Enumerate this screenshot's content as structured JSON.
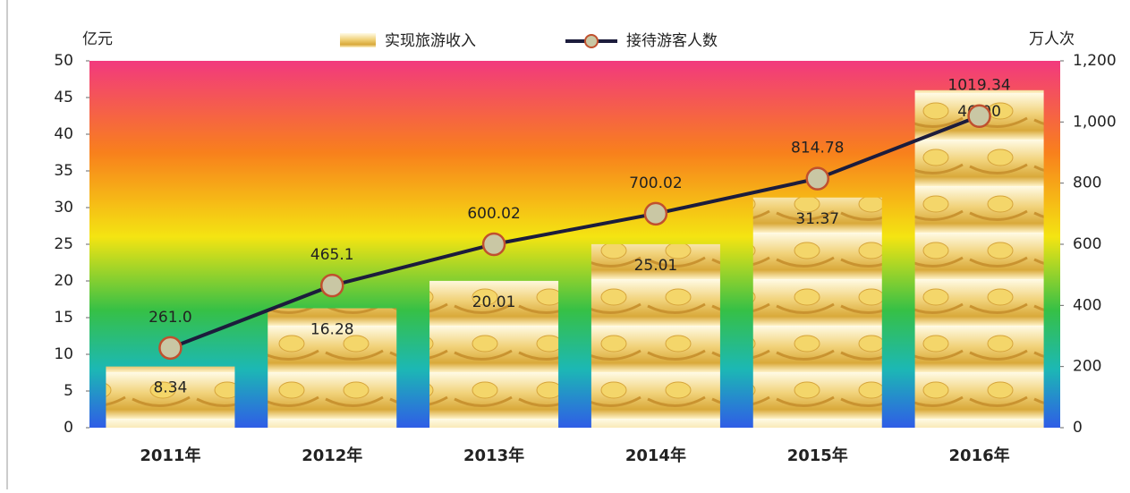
{
  "chart_data": {
    "type": "bar",
    "y_label": "亿元",
    "y2_label": "万人次",
    "categories": [
      "2011年",
      "2012年",
      "2013年",
      "2014年",
      "2015年",
      "2016年"
    ],
    "series": [
      {
        "name": "实现旅游收入",
        "type": "bar",
        "color": "#e8c45a",
        "values": [
          8.34,
          16.28,
          20.01,
          25.01,
          31.37,
          46
        ],
        "value_labels": [
          "8.34",
          "16.28",
          "20.01",
          "25.01",
          "31.37",
          "46.00"
        ]
      },
      {
        "name": "接待游客人数",
        "type": "line",
        "axis": "y2",
        "color": "#1c1c3c",
        "marker_fill": "#c9c7a4",
        "marker_edge": "#c0502e",
        "values": [
          261,
          465.1,
          600.02,
          700.02,
          814.78,
          1019.34
        ],
        "value_labels": [
          "261.0",
          "465.1",
          "600.02",
          "700.02",
          "814.78",
          "1019.34"
        ]
      }
    ],
    "ylim": [
      0,
      50
    ],
    "yticks": [
      0,
      5,
      10,
      15,
      20,
      25,
      30,
      35,
      40,
      45,
      50
    ],
    "y2lim": [
      0,
      1200
    ],
    "y2ticks": [
      0,
      200,
      400,
      600,
      800,
      {
        "value": 1000,
        "label": "1,000"
      },
      {
        "value": 1200,
        "label": "1,200"
      }
    ]
  }
}
